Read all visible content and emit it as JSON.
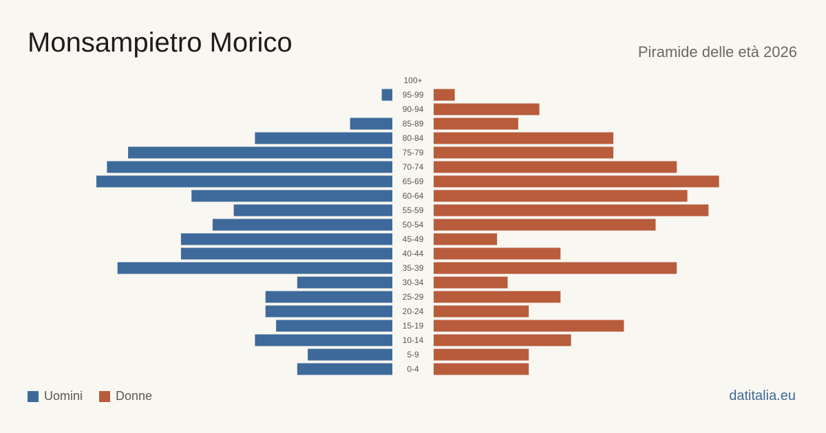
{
  "header": {
    "title": "Monsampietro Morico",
    "subtitle": "Piramide delle età 2026"
  },
  "legend": {
    "men_label": "Uomini",
    "women_label": "Donne"
  },
  "footer": {
    "source": "datitalia.eu"
  },
  "colors": {
    "men": "#3d6a9a",
    "women": "#b85c3c",
    "background": "#f9f7f2",
    "age_label": "#5a5752"
  },
  "chart_data": {
    "type": "bar",
    "orientation": "horizontal-pyramid",
    "categories": [
      "100+",
      "95-99",
      "90-94",
      "85-89",
      "80-84",
      "75-79",
      "70-74",
      "65-69",
      "60-64",
      "55-59",
      "50-54",
      "45-49",
      "40-44",
      "35-39",
      "30-34",
      "25-29",
      "20-24",
      "15-19",
      "10-14",
      "5-9",
      "0-4"
    ],
    "series": [
      {
        "name": "Uomini",
        "values": [
          0,
          1,
          0,
          4,
          13,
          25,
          27,
          28,
          19,
          15,
          17,
          20,
          20,
          26,
          9,
          12,
          12,
          11,
          13,
          8,
          9
        ]
      },
      {
        "name": "Donne",
        "values": [
          0,
          2,
          10,
          8,
          17,
          17,
          23,
          27,
          24,
          26,
          21,
          6,
          12,
          23,
          7,
          12,
          9,
          18,
          13,
          9,
          9
        ]
      }
    ],
    "xlim": [
      0,
      28
    ],
    "title": "",
    "xlabel": "",
    "ylabel": "",
    "grid": false,
    "legend_position": "bottom-left"
  }
}
